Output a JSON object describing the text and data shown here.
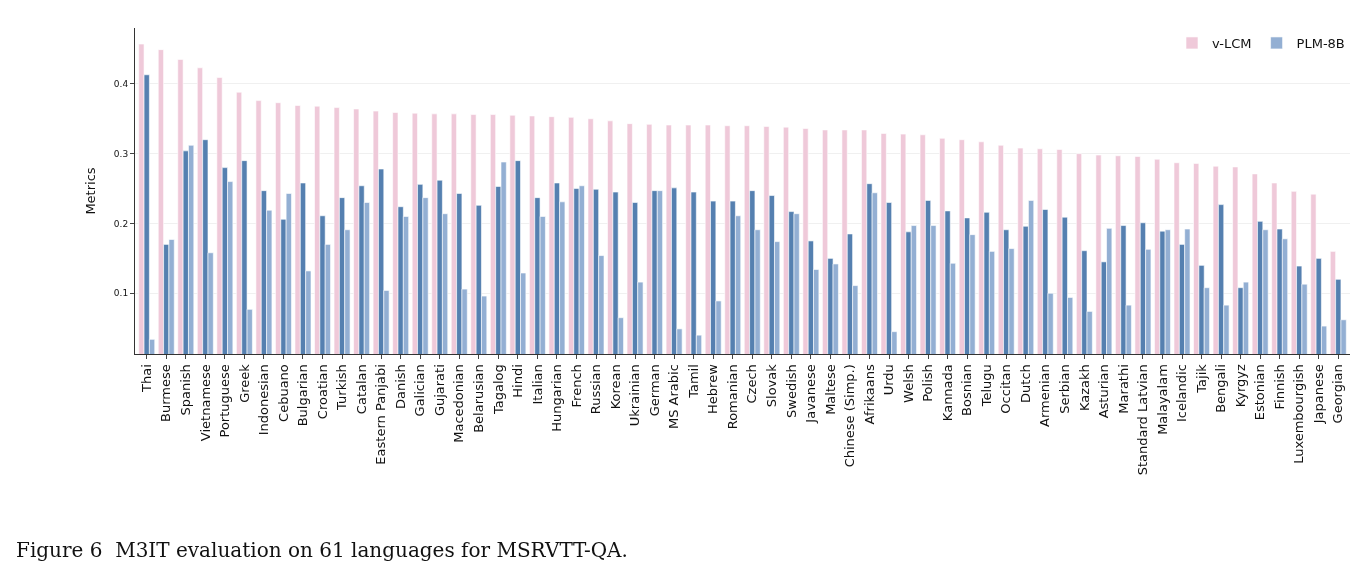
{
  "chart_data": {
    "type": "bar",
    "ylabel": "Metrics",
    "categories": [
      "Thai",
      "Burmese",
      "Spanish",
      "Vietnamese",
      "Portuguese",
      "Greek",
      "Indonesian",
      "Cebuano",
      "Bulgarian",
      "Croatian",
      "Turkish",
      "Catalan",
      "Eastern Panjabi",
      "Danish",
      "Galician",
      "Gujarati",
      "Macedonian",
      "Belarusian",
      "Tagalog",
      "Hindi",
      "Italian",
      "Hungarian",
      "French",
      "Russian",
      "Korean",
      "Ukrainian",
      "German",
      "MS Arabic",
      "Tamil",
      "Hebrew",
      "Romanian",
      "Czech",
      "Slovak",
      "Swedish",
      "Javanese",
      "Maltese",
      "Chinese (Simp.)",
      "Afrikaans",
      "Urdu",
      "Welsh",
      "Polish",
      "Kannada",
      "Bosnian",
      "Telugu",
      "Occitan",
      "Dutch",
      "Armenian",
      "Serbian",
      "Kazakh",
      "Asturian",
      "Marathi",
      "Standard Latvian",
      "Malayalam",
      "Icelandic",
      "Tajik",
      "Bengali",
      "Kyrgyz",
      "Estonian",
      "Finnish",
      "Luxembourgish",
      "Japanese",
      "Georgian"
    ],
    "series": [
      {
        "name": "v-LCM",
        "color": "#efc9d9",
        "values": [
          0.457,
          0.449,
          0.435,
          0.423,
          0.409,
          0.388,
          0.376,
          0.373,
          0.369,
          0.368,
          0.366,
          0.364,
          0.361,
          0.359,
          0.358,
          0.357,
          0.357,
          0.356,
          0.356,
          0.355,
          0.354,
          0.353,
          0.352,
          0.35,
          0.347,
          0.343,
          0.342,
          0.341,
          0.341,
          0.341,
          0.34,
          0.34,
          0.339,
          0.338,
          0.336,
          0.334,
          0.334,
          0.334,
          0.329,
          0.328,
          0.327,
          0.322,
          0.32,
          0.317,
          0.312,
          0.308,
          0.307,
          0.306,
          0.3,
          0.298,
          0.297,
          0.296,
          0.292,
          0.287,
          0.286,
          0.282,
          0.281,
          0.271,
          0.258,
          0.246,
          0.242,
          0.16
        ]
      },
      {
        "color": "#5580b0",
        "values": [
          0.413,
          0.17,
          0.304,
          0.32,
          0.28,
          0.29,
          0.247,
          0.206,
          0.258,
          0.211,
          0.237,
          0.254,
          0.278,
          0.224,
          0.256,
          0.262,
          0.243,
          0.226,
          0.253,
          0.29,
          0.237,
          0.258,
          0.25,
          0.249,
          0.245,
          0.23,
          0.247,
          0.251,
          0.245,
          0.232,
          0.232,
          0.247,
          0.24,
          0.217,
          0.175,
          0.15,
          0.185,
          0.257,
          0.23,
          0.188,
          0.233,
          0.218,
          0.208,
          0.216,
          0.191,
          0.196,
          0.22,
          0.209,
          0.161,
          0.145,
          0.197,
          0.201,
          0.189,
          0.17,
          0.14,
          0.227,
          0.108,
          0.203,
          0.192,
          0.139,
          0.15,
          0.12
        ]
      },
      {
        "name": "PLM-8B",
        "color": "#93afd3",
        "values": [
          0.034,
          0.177,
          0.312,
          0.158,
          0.26,
          0.077,
          0.219,
          0.243,
          0.132,
          0.17,
          0.191,
          0.23,
          0.104,
          0.21,
          0.237,
          0.214,
          0.106,
          0.096,
          0.288,
          0.129,
          0.21,
          0.231,
          0.254,
          0.154,
          0.065,
          0.116,
          0.247,
          0.049,
          0.04,
          0.089,
          0.211,
          0.191,
          0.174,
          0.214,
          0.134,
          0.142,
          0.111,
          0.244,
          0.045,
          0.197,
          0.197,
          0.143,
          0.184,
          0.16,
          0.164,
          0.233,
          0.1,
          0.094,
          0.074,
          0.193,
          0.083,
          0.163,
          0.191,
          0.192,
          0.108,
          0.083,
          0.116,
          0.191,
          0.178,
          0.113,
          0.053,
          0.062
        ]
      }
    ],
    "ylim": [
      0.013,
      0.48
    ],
    "yticks": [
      0.1,
      0.2,
      0.3,
      0.4
    ],
    "grid": "y",
    "legend": "top right",
    "annotations": [
      "Figure 6  M3IT evaluation on 61 languages for MSRVTT-QA."
    ]
  }
}
